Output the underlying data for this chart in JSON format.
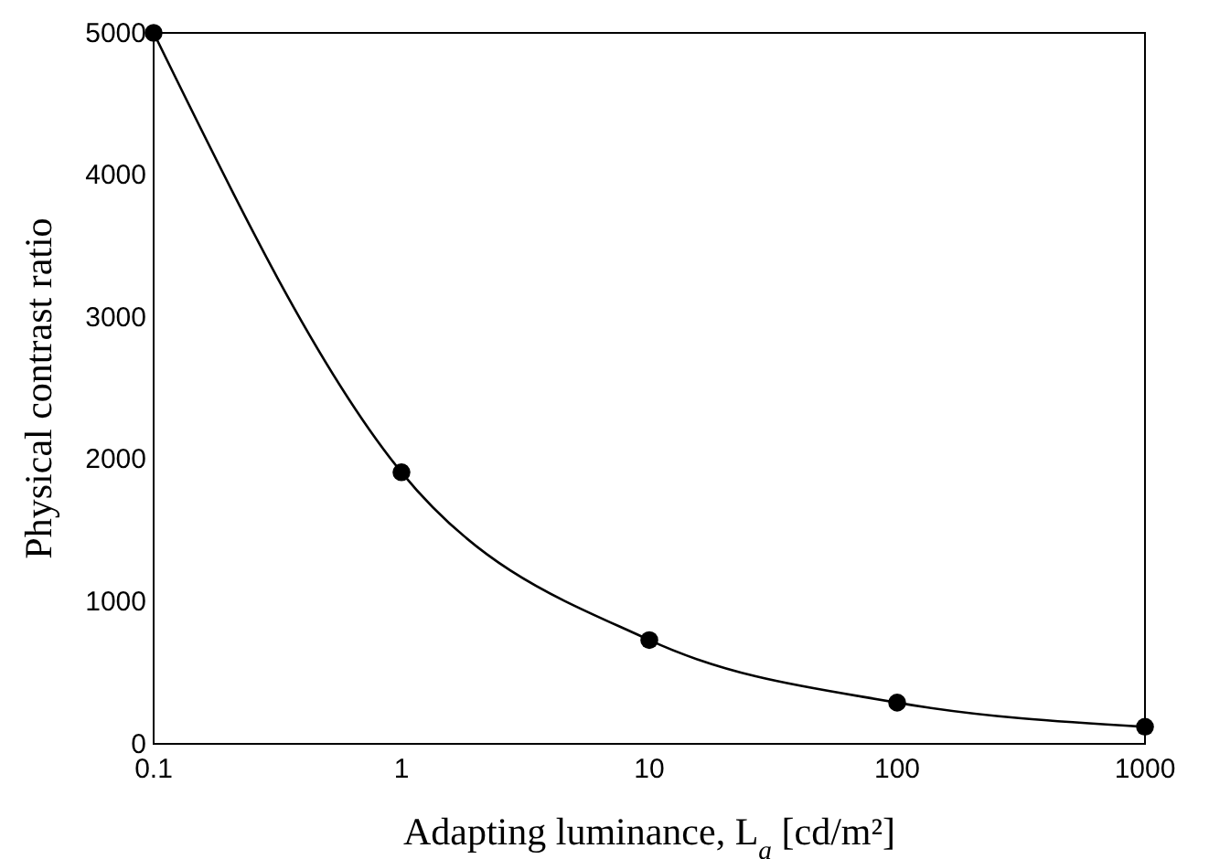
{
  "chart_data": {
    "type": "line",
    "xlabel": "Adapting luminance, L$_{a}$ [cd/m²]",
    "ylabel": "Physical contrast ratio",
    "x": [
      0.1,
      1,
      10,
      100,
      1000
    ],
    "series": [
      {
        "color": "#000000",
        "values": [
          5000,
          1910,
          730,
          290,
          120
        ]
      }
    ],
    "log": "x",
    "xlim": [
      0.1,
      1000
    ],
    "xticks": [
      0.1,
      1,
      10,
      100,
      1000
    ],
    "ylim": [
      0,
      5000
    ],
    "yticks": [
      0,
      1000,
      2000,
      3000,
      4000,
      5000
    ],
    "marker": "circle",
    "line_style": "solid",
    "grid": false
  }
}
